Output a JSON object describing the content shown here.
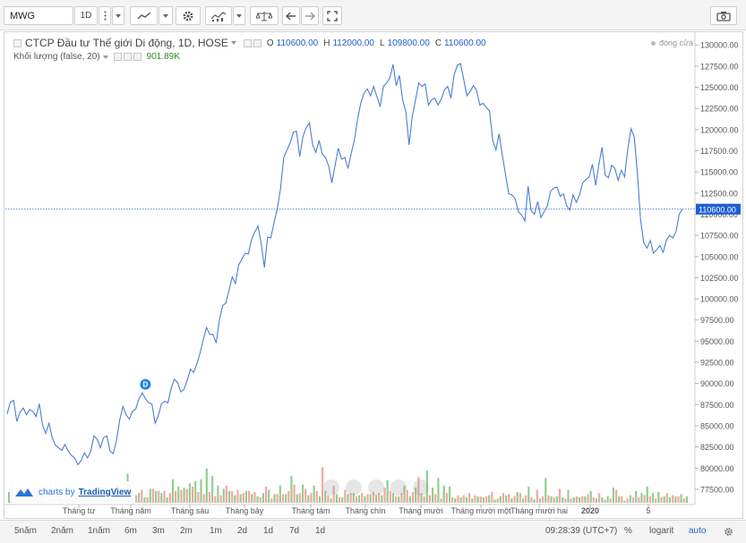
{
  "toolbar": {
    "symbol": "MWG",
    "interval": "1D"
  },
  "legend": {
    "title": "CTCP Đầu tư Thế giới Di động, 1D, HOSE",
    "o_label": "O",
    "o_value": "110600.00",
    "h_label": "H",
    "h_value": "112000.00",
    "l_label": "L",
    "l_value": "109800.00",
    "c_label": "C",
    "c_value": "110600.00",
    "volume_title": "Khối lượng (false, 20)",
    "volume_value": "901.89K",
    "market_status": "đóng cửa"
  },
  "event_marker": "D",
  "watermark": {
    "prefix": "charts by",
    "brand": "TradingView"
  },
  "bottombar": {
    "ranges": [
      "5năm",
      "2năm",
      "1năm",
      "6m",
      "3m",
      "2m",
      "1m",
      "2d",
      "1d",
      "7d",
      "1d"
    ],
    "time": "09:28:39 (UTC+7)",
    "percent": "%",
    "log": "logarit",
    "auto": "auto"
  },
  "colors": {
    "line": "#4a7fd4",
    "up_volume": "#83c883",
    "down_volume": "#f49a9a",
    "last_price_label": "#1e5fd0"
  },
  "chart_data": {
    "type": "line",
    "title": "CTCP Đầu tư Thế giới Di động, 1D, HOSE",
    "series_name": "MWG",
    "x_ticks": [
      "Tháng tư",
      "Tháng năm",
      "Tháng sáu",
      "Tháng bảy",
      "Tháng tám",
      "Tháng chín",
      "Tháng mười",
      "Tháng mười một",
      "Tháng mười hai",
      "2020",
      "5"
    ],
    "y_ticks": [
      77500,
      80000,
      82500,
      85000,
      87500,
      90000,
      92500,
      95000,
      97500,
      100000,
      102500,
      105000,
      107500,
      110000,
      112500,
      115000,
      117500,
      120000,
      122500,
      125000,
      127500,
      130000
    ],
    "y_tick_labels": [
      "77500.00",
      "80000.00",
      "82500.00",
      "85000.00",
      "87500.00",
      "90000.00",
      "92500.00",
      "95000.00",
      "97500.00",
      "100000.00",
      "102500.00",
      "105000.00",
      "107500.00",
      "110000.00",
      "112500.00",
      "115000.00",
      "117500.00",
      "120000.00",
      "122500.00",
      "125000.00",
      "127500.00",
      "130000.00"
    ],
    "ylim": [
      75800,
      131400
    ],
    "last_price": 110600,
    "last_price_label": "110600.00",
    "price": [
      86400,
      87800,
      88000,
      85500,
      86600,
      87100,
      86300,
      86900,
      86700,
      86100,
      87600,
      85100,
      84100,
      85300,
      83600,
      82700,
      82400,
      82100,
      82800,
      82000,
      81500,
      81200,
      80400,
      80900,
      81800,
      81200,
      82000,
      83800,
      83400,
      82400,
      83600,
      83800,
      82000,
      81700,
      83300,
      85700,
      87300,
      86300,
      85800,
      86700,
      87000,
      88200,
      88900,
      88200,
      87700,
      87600,
      85300,
      86200,
      87600,
      87900,
      87700,
      89400,
      90500,
      90100,
      89000,
      89300,
      90400,
      91700,
      91300,
      92300,
      93600,
      95200,
      96600,
      95800,
      95800,
      94800,
      97500,
      99200,
      99500,
      101000,
      102600,
      101800,
      104000,
      104700,
      105400,
      105300,
      107000,
      107900,
      108600,
      106600,
      103700,
      107300,
      107200,
      109000,
      110600,
      113000,
      116700,
      117600,
      118400,
      119700,
      119800,
      116800,
      119200,
      120200,
      120800,
      118200,
      117300,
      118700,
      117100,
      116700,
      115700,
      113700,
      115800,
      117800,
      116500,
      116700,
      115400,
      117200,
      118800,
      121300,
      123200,
      124300,
      124800,
      124000,
      125100,
      123900,
      122700,
      125100,
      125500,
      126100,
      127700,
      125200,
      126400,
      123500,
      122100,
      118200,
      121600,
      123500,
      125500,
      125100,
      125400,
      122900,
      123500,
      123700,
      122900,
      123600,
      124700,
      125100,
      123700,
      126500,
      127600,
      127800,
      125900,
      124000,
      124500,
      125200,
      124600,
      122900,
      123100,
      122600,
      122200,
      118700,
      117600,
      119500,
      117000,
      114700,
      112400,
      112300,
      111800,
      110300,
      109900,
      109200,
      113300,
      110400,
      110000,
      111500,
      109600,
      110300,
      111000,
      112700,
      113100,
      113200,
      112100,
      112400,
      111000,
      110500,
      112300,
      111400,
      112300,
      113700,
      114100,
      114400,
      115900,
      113400,
      115800,
      117900,
      114600,
      114300,
      115800,
      115400,
      114000,
      115200,
      114400,
      117700,
      120100,
      119200,
      114900,
      109300,
      106600,
      106000,
      106900,
      105400,
      105800,
      106300,
      105500,
      106900,
      107500,
      107200,
      107900,
      110000,
      110600
    ],
    "volume_up": [
      0.1,
      0.05,
      0.09,
      0.07,
      0.12,
      0.16,
      0.09,
      0.04,
      0.1,
      0.09,
      0.12,
      0.06,
      0.1,
      0.07,
      0.11,
      0.11,
      0.06,
      0.15,
      0.11,
      0.16,
      0.09,
      0.27,
      0.03,
      0.09,
      0.05,
      0.13,
      0.11,
      0.09,
      0.05,
      0.22,
      0.15,
      0.14,
      0.18,
      0.2,
      0.22,
      0.32,
      0.25,
      0.16,
      0.13,
      0.11,
      0.07,
      0.08,
      0.11,
      0.08,
      0.06,
      0.09,
      0.12,
      0.08,
      0.16,
      0.08,
      0.25,
      0.08,
      0.17,
      0.07,
      0.16,
      0.06,
      0.11,
      0.04,
      0.08,
      0.05,
      0.08,
      0.09,
      0.07,
      0.06,
      0.08,
      0.07,
      0.07,
      0.21,
      0.09,
      0.06,
      0.16,
      0.06,
      0.14,
      0.09,
      0.3,
      0.14,
      0.23,
      0.16,
      0.15,
      0.04,
      0.05,
      0.05,
      0.04,
      0.06,
      0.05,
      0.07,
      0.03,
      0.06,
      0.07,
      0.04,
      0.1,
      0.04,
      0.15,
      0.03,
      0.04,
      0.23,
      0.06,
      0.06,
      0.05,
      0.12,
      0.05,
      0.05,
      0.06,
      0.11,
      0.04,
      0.05,
      0.06,
      0.14,
      0.06,
      0.02,
      0.07,
      0.11,
      0.09,
      0.15,
      0.09,
      0.1,
      0.06,
      0.05,
      0.06,
      0.08,
      0.06
    ],
    "volume_down": [
      0.2,
      0.12,
      0.11,
      0.08,
      0.17,
      0.13,
      0.14,
      0.2,
      0.07,
      0.04,
      0.05,
      0.13,
      0.08,
      0.05,
      0.03,
      0.09,
      0.12,
      0.1,
      0.07,
      0.06,
      0.1,
      0.16,
      0.07,
      0.12,
      0.05,
      0.13,
      0.11,
      0.11,
      0.09,
      0.11,
      0.12,
      0.13,
      0.15,
      0.1,
      0.08,
      0.1,
      0.06,
      0.07,
      0.16,
      0.11,
      0.12,
      0.09,
      0.11,
      0.1,
      0.05,
      0.15,
      0.04,
      0.08,
      0.08,
      0.11,
      0.17,
      0.09,
      0.13,
      0.09,
      0.11,
      0.33,
      0.07,
      0.16,
      0.05,
      0.12,
      0.09,
      0.06,
      0.09,
      0.08,
      0.1,
      0.09,
      0.14,
      0.11,
      0.06,
      0.09,
      0.12,
      0.1,
      0.24,
      0.06,
      0.07,
      0.08,
      0.04,
      0.09,
      0.05,
      0.07,
      0.07,
      0.09,
      0.07,
      0.06,
      0.06,
      0.1,
      0.04,
      0.09,
      0.08,
      0.06,
      0.09,
      0.07,
      0.05,
      0.12,
      0.06,
      0.07,
      0.05,
      0.13,
      0.04,
      0.04,
      0.06,
      0.06,
      0.08,
      0.05,
      0.09,
      0.03,
      0.04,
      0.12,
      0.06,
      0.04,
      0.05,
      0.05,
      0.07,
      0.06,
      0.04,
      0.05,
      0.09,
      0.07,
      0.06,
      0.04
    ]
  }
}
